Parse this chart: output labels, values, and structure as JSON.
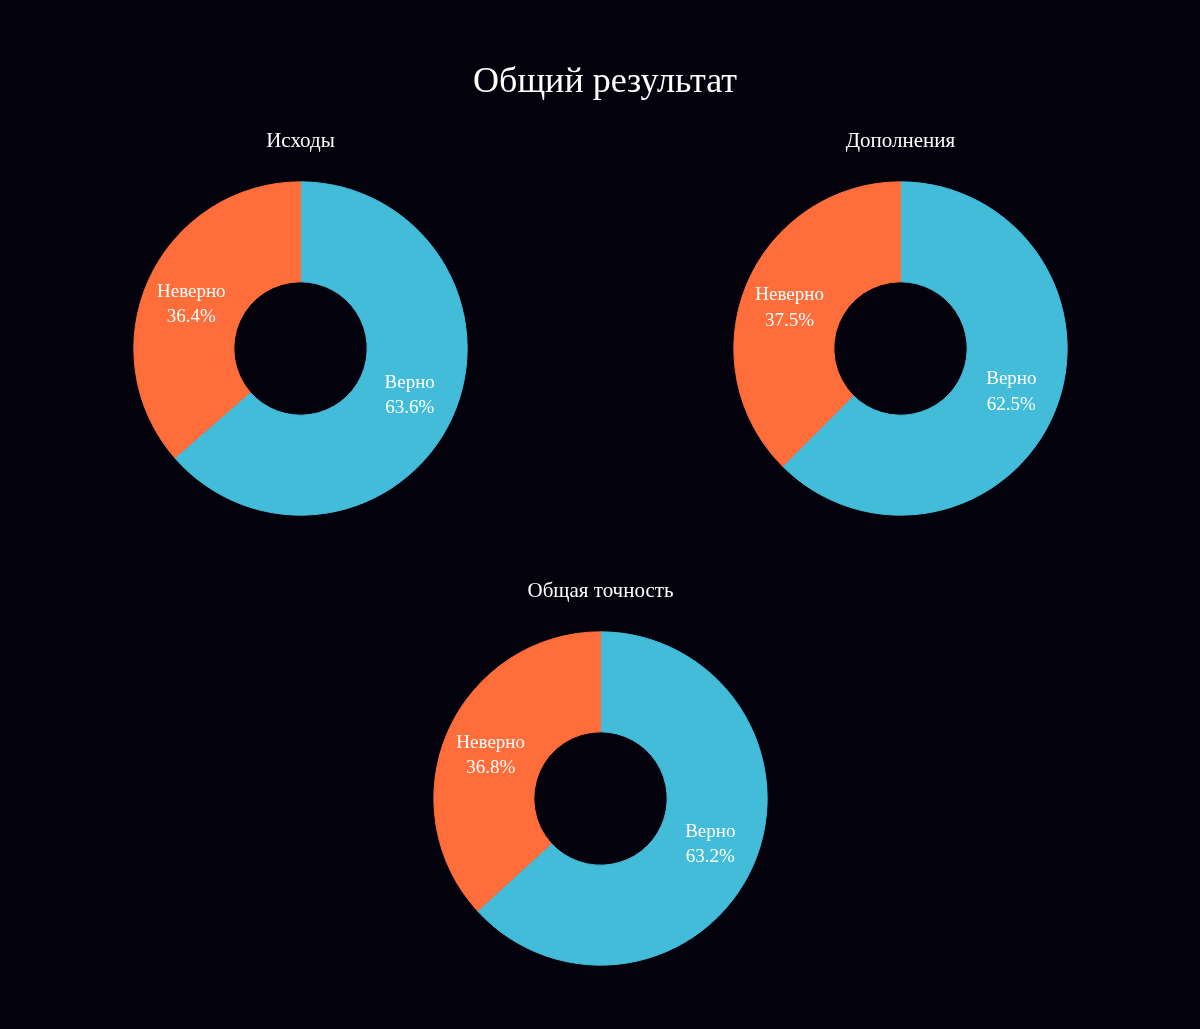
{
  "chart_data": [
    {
      "type": "donut",
      "title": "Исходы",
      "annotations": [
        "Общий результат"
      ],
      "categories": [
        "Верно",
        "Неверно"
      ],
      "values": [
        63.6,
        36.4
      ],
      "value_labels": [
        "63.6%",
        "36.4%"
      ],
      "colors": [
        "#42bcd8",
        "#fe6d3a"
      ]
    },
    {
      "type": "donut",
      "title": "Дополнения",
      "categories": [
        "Верно",
        "Неверно"
      ],
      "values": [
        62.5,
        37.5
      ],
      "value_labels": [
        "62.5%",
        "37.5%"
      ],
      "colors": [
        "#42bcd8",
        "#fe6d3a"
      ]
    },
    {
      "type": "donut",
      "title": "Общая точность",
      "categories": [
        "Верно",
        "Неверно"
      ],
      "values": [
        63.2,
        36.8
      ],
      "value_labels": [
        "63.2%",
        "36.8%"
      ],
      "colors": [
        "#42bcd8",
        "#fe6d3a"
      ]
    }
  ]
}
